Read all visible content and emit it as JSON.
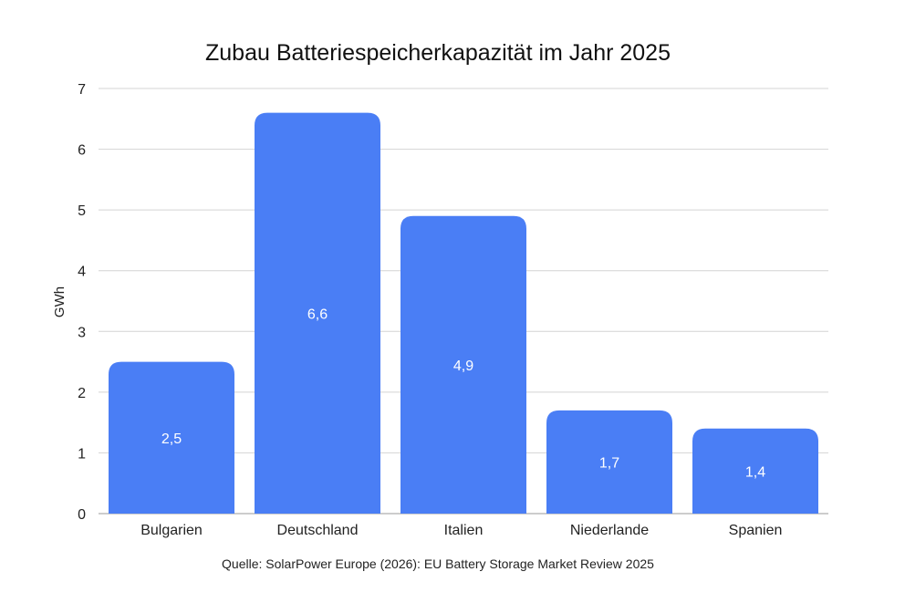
{
  "chart_data": {
    "type": "bar",
    "title": "Zubau Batteriespeicherkapazität im Jahr 2025",
    "xlabel": "",
    "ylabel": "GWh",
    "categories": [
      "Bulgarien",
      "Deutschland",
      "Italien",
      "Niederlande",
      "Spanien"
    ],
    "values": [
      2.5,
      6.6,
      4.9,
      1.7,
      1.4
    ],
    "data_labels": [
      "2,5",
      "6,6",
      "4,9",
      "1,7",
      "1,4"
    ],
    "ylim": [
      0,
      7
    ],
    "yticks": [
      "0",
      "1",
      "2",
      "3",
      "4",
      "5",
      "6",
      "7"
    ],
    "grid": true,
    "bar_color": "#4a7ef5",
    "source": "Quelle: SolarPower Europe (2026): EU Battery Storage Market Review 2025"
  }
}
